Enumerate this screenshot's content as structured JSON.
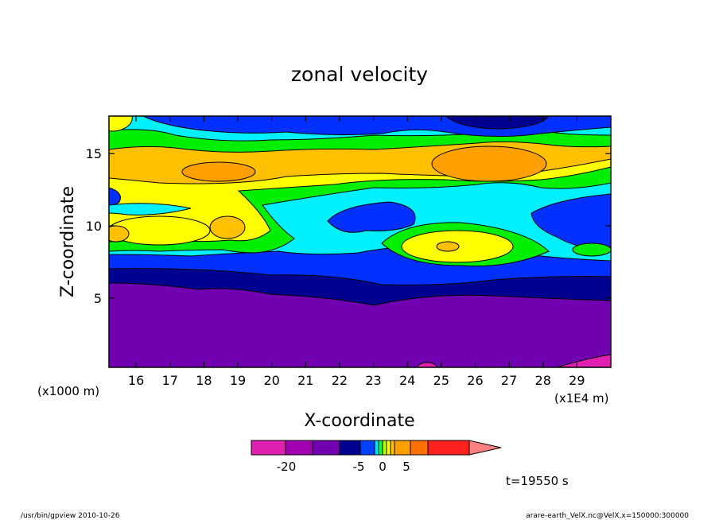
{
  "chart_data": {
    "type": "heatmap",
    "subtype": "filled-contour",
    "title": "zonal velocity",
    "xlabel": "X-coordinate",
    "ylabel": "Z-coordinate",
    "x_units": "(x1E4 m)",
    "y_units": "(x1000 m)",
    "xlim": [
      15.2,
      30.0
    ],
    "ylim": [
      0.2,
      17.6
    ],
    "x_ticks": [
      "16",
      "17",
      "18",
      "19",
      "20",
      "21",
      "22",
      "23",
      "24",
      "25",
      "26",
      "27",
      "28",
      "29"
    ],
    "y_ticks": [
      "5",
      "10",
      "15"
    ],
    "legend": {
      "colors": [
        "#e020b0",
        "#a000b0",
        "#7000b0",
        "#000090",
        "#0040ff",
        "#00e0ff",
        "#00ff40",
        "#c0ff00",
        "#ffff00",
        "#ffc000",
        "#ffa000",
        "#ff7000",
        "#ff2020",
        "#ff8080"
      ],
      "labels": [
        "-20",
        "-5",
        "0",
        "5"
      ]
    },
    "palette": {
      "magenta": "#e020b0",
      "purple": "#7000b0",
      "navy": "#000090",
      "blue": "#0030ff",
      "cyan": "#00f0ff",
      "green": "#00ee00",
      "yellow": "#ffff00",
      "light_orange": "#ffc000",
      "orange": "#ffa000"
    },
    "time_label": "t=19550 s"
  },
  "footer": {
    "left": "/usr/bin/gpview  2010-10-26",
    "right": "arare-earth_VelX.nc@VelX,x=150000:300000"
  }
}
